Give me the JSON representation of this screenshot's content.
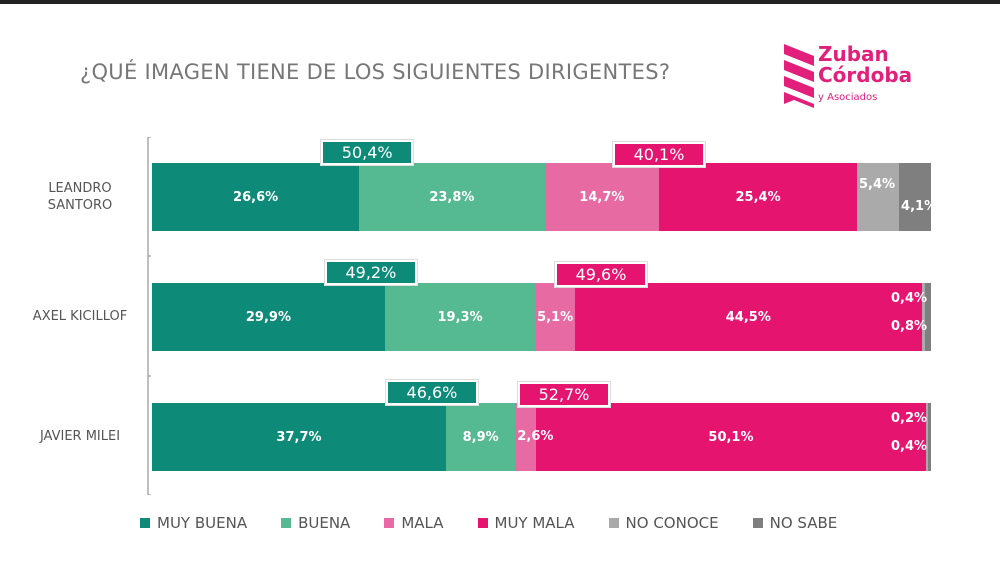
{
  "title": "¿QUÉ IMAGEN TIENE DE LOS SIGUIENTES DIRIGENTES?",
  "logo": {
    "line1": "Zuban",
    "line2": "Córdoba",
    "line3": "y Asociados"
  },
  "chart_data": {
    "type": "stacked-bar-horizontal",
    "categories": [
      "LEANDRO SANTORO",
      "AXEL KICILLOF",
      "JAVIER MILEI"
    ],
    "series": [
      {
        "name": "MUY BUENA",
        "color": "#0e8a78",
        "values": [
          26.6,
          29.9,
          37.7
        ],
        "labels": [
          "26,6%",
          "29,9%",
          "37,7%"
        ]
      },
      {
        "name": "BUENA",
        "color": "#55b992",
        "values": [
          23.8,
          19.3,
          8.9
        ],
        "labels": [
          "23,8%",
          "19,3%",
          "8,9%"
        ]
      },
      {
        "name": "MALA",
        "color": "#e86aa3",
        "values": [
          14.7,
          5.1,
          2.6
        ],
        "labels": [
          "14,7%",
          "5,1%",
          "2,6%"
        ]
      },
      {
        "name": "MUY MALA",
        "color": "#e5156f",
        "values": [
          25.4,
          44.5,
          50.1
        ],
        "labels": [
          "25,4%",
          "44,5%",
          "50,1%"
        ]
      },
      {
        "name": "NO CONOCE",
        "color": "#aaaaaa",
        "values": [
          5.4,
          0.4,
          0.2
        ],
        "labels": [
          "5,4%",
          "0,4%",
          "0,2%"
        ]
      },
      {
        "name": "NO SABE",
        "color": "#7f7f7f",
        "values": [
          4.1,
          0.8,
          0.4
        ],
        "labels": [
          "4,1%",
          "0,8%",
          "0,4%"
        ]
      }
    ],
    "totals_positive": [
      "50,4%",
      "49,2%",
      "46,6%"
    ],
    "totals_negative": [
      "40,1%",
      "49,6%",
      "52,7%"
    ],
    "legend": "bottom"
  }
}
